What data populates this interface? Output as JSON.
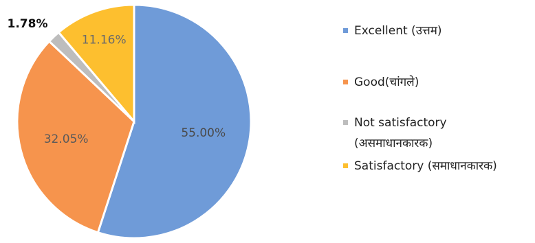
{
  "chart_data": {
    "type": "pie",
    "title": "",
    "legend_placement": "right",
    "slices": [
      {
        "label": "Excellent (उत्तम)",
        "value": 55.0,
        "display": "55.00%",
        "color": "#6f9bd8",
        "label_color": "#4a4a4a"
      },
      {
        "label": "Good(चांगले)",
        "value": 32.05,
        "display": "32.05%",
        "color": "#f6944d",
        "label_color": "#5a5a5a"
      },
      {
        "label": "Not satisfactory (असमाधानकारक)",
        "value": 1.78,
        "display": "1.78%",
        "color": "#bdbdbd",
        "label_color": "#111111"
      },
      {
        "label": "Satisfactory (समाधानकारक)",
        "value": 11.16,
        "display": "11.16%",
        "color": "#fdbf2f",
        "label_color": "#6a6a6a"
      }
    ]
  }
}
